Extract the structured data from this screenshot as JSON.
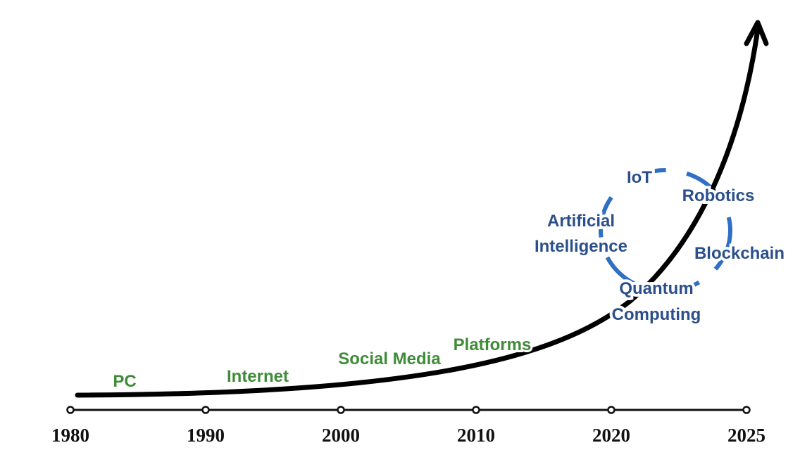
{
  "timeline": {
    "years": [
      "1980",
      "1990",
      "2000",
      "2010",
      "2020",
      "2025"
    ]
  },
  "milestones": [
    "PC",
    "Internet",
    "Social Media",
    "Platforms"
  ],
  "emerging": {
    "iot": "IoT",
    "robotics": "Robotics",
    "ai": [
      "Artificial",
      "Intelligence"
    ],
    "blockchain": "Blockchain",
    "quantum": [
      "Quantum",
      "Computing"
    ]
  }
}
